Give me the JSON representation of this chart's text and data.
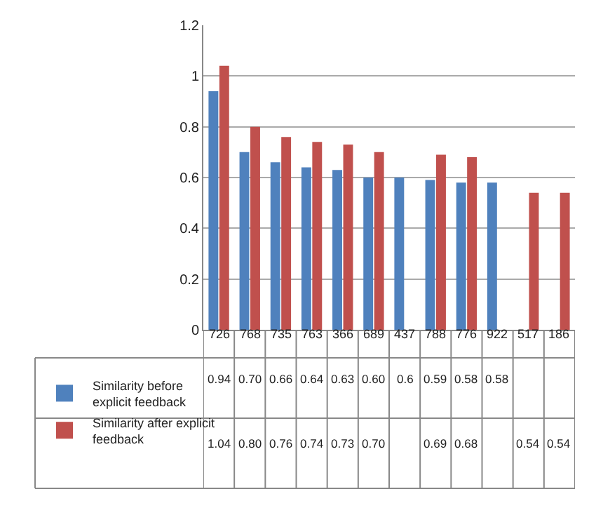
{
  "chart_data": {
    "type": "bar",
    "categories": [
      "726",
      "768",
      "735",
      "763",
      "366",
      "689",
      "437",
      "788",
      "776",
      "922",
      "517",
      "186"
    ],
    "series": [
      {
        "name": "Similarity before explicit feedback",
        "color": "#4f81bd",
        "values": [
          0.94,
          0.7,
          0.66,
          0.64,
          0.63,
          0.6,
          0.6,
          0.59,
          0.58,
          0.58,
          null,
          null
        ],
        "value_labels": [
          "0.94",
          "0.70",
          "0.66",
          "0.64",
          "0.63",
          "0.60",
          "0.6",
          "0.59",
          "0.58",
          "0.58",
          null,
          null
        ]
      },
      {
        "name": "Similarity after explicit feedback",
        "color": "#c0504d",
        "values": [
          1.04,
          0.8,
          0.76,
          0.74,
          0.73,
          0.7,
          null,
          0.69,
          0.68,
          null,
          0.54,
          0.54
        ],
        "value_labels": [
          "1.04",
          "0.80",
          "0.76",
          "0.74",
          "0.73",
          "0.70",
          null,
          "0.69",
          "0.68",
          null,
          "0.54",
          "0.54"
        ]
      }
    ],
    "ylim": [
      0,
      1.2
    ],
    "yticks": [
      0,
      0.2,
      0.4,
      0.6,
      0.8,
      1,
      1.2
    ],
    "grid": "y",
    "legend": "bottom"
  }
}
